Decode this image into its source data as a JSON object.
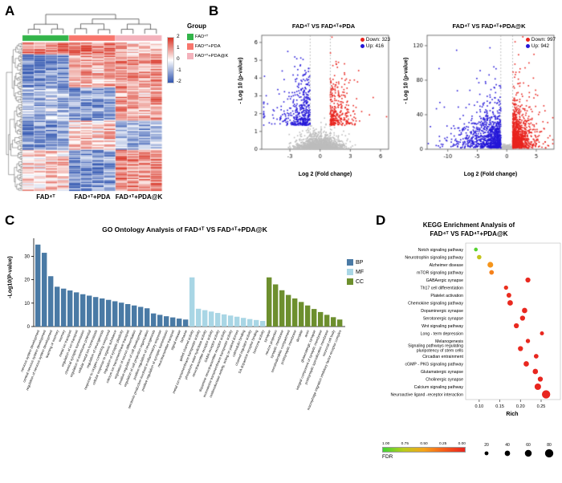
{
  "figure": {
    "panel_a_label": "A",
    "panel_b_label": "B",
    "panel_c_label": "C",
    "panel_d_label": "D"
  },
  "panel_a": {
    "group_legend_title": "Group",
    "legend_items": [
      {
        "label": "FAD⁴ᵀ",
        "color": "#33b44a"
      },
      {
        "label": "FAD⁴ᵀ+PDA",
        "color": "#f8766d"
      },
      {
        "label": "FAD⁴ᵀ+PDA@K",
        "color": "#f4b2bc"
      }
    ],
    "colorbar_ticks": [
      "2",
      "1",
      "0",
      "-1",
      "-2"
    ],
    "x_labels": [
      "FAD⁴ᵀ",
      "FAD⁴ᵀ+PDA",
      "FAD⁴ᵀ+PDA@K"
    ]
  },
  "chart_data": [
    {
      "id": "heatmap",
      "type": "heatmap",
      "seed": 42,
      "n_rows": 112,
      "n_cols": 12,
      "group_sizes": [
        4,
        4,
        4
      ],
      "groups": [
        "FAD⁴ᵀ",
        "FAD⁴ᵀ+PDA",
        "FAD⁴ᵀ+PDA@K"
      ],
      "group_colors": [
        "#33b44a",
        "#f8766d",
        "#f4b2bc"
      ],
      "colors": {
        "high": "#d93425",
        "mid": "#ffffff",
        "low": "#3156b0"
      },
      "scale_ticks": [
        2,
        1,
        0,
        -1,
        -2
      ],
      "top_tree": [
        [
          [
            0,
            1
          ],
          [
            2,
            3
          ]
        ],
        [
          [
            [
              4,
              5
            ],
            [
              6,
              7
            ]
          ],
          [
            [
              8,
              9
            ],
            [
              10,
              11
            ]
          ]
        ]
      ],
      "bands": [
        {
          "f": 0.08,
          "v": [
            1.4,
            1.5,
            0.6
          ]
        },
        {
          "f": 0.3,
          "v": [
            -1.5,
            0.8,
            1.1
          ]
        },
        {
          "f": 0.52,
          "v": [
            -0.9,
            -1.2,
            0.8
          ]
        },
        {
          "f": 0.72,
          "v": [
            -1.4,
            0.6,
            -1.0
          ]
        },
        {
          "f": 1.01,
          "v": [
            0.4,
            -1.3,
            1.2
          ]
        }
      ]
    },
    {
      "id": "volcano_pda",
      "type": "scatter",
      "title": "FAD⁴ᵀ VS FAD⁴ᵀ+PDA",
      "xlabel": "Log 2 (Fold change)",
      "ylabel": "- Log 10 (p-value)",
      "legend": [
        {
          "label": "Down: 323",
          "color": "#e8241e"
        },
        {
          "label": "Up: 416",
          "color": "#2417d8"
        }
      ],
      "xlim": [
        -5.8,
        6.8
      ],
      "ylim": [
        0,
        6.4
      ],
      "xticks": [
        -3,
        0,
        3,
        6
      ],
      "yticks": [
        0,
        1,
        2,
        3,
        4,
        5,
        6
      ],
      "thresh": 1,
      "seed": 7,
      "n_gray": 1700,
      "n_up": 416,
      "n_down": 323,
      "gray_sx": 1.0,
      "gray_ys": 0.55,
      "up_sx": 1.2,
      "down_sx": 0.9,
      "ytail": 1.0,
      "up_color": "#2417d8",
      "down_color": "#e8241e",
      "ns_color": "#bdbdbd"
    },
    {
      "id": "volcano_pdak",
      "type": "scatter",
      "title": "FAD⁴ᵀ VS FAD⁴ᵀ+PDA@K",
      "xlabel": "Log 2 (Fold change)",
      "ylabel": "- Log 10 (p-value)",
      "legend": [
        {
          "label": "Down: 997",
          "color": "#e8241e"
        },
        {
          "label": "Up: 942",
          "color": "#2417d8"
        }
      ],
      "xlim": [
        -13.5,
        8
      ],
      "ylim": [
        0,
        132
      ],
      "xticks": [
        -10,
        -5,
        0,
        5
      ],
      "yticks": [
        0,
        40,
        80,
        120
      ],
      "thresh": 1,
      "seed": 11,
      "n_gray": 1700,
      "n_up": 942,
      "n_down": 997,
      "gray_sx": 0.9,
      "gray_ys": 2.0,
      "up_sx": 2.4,
      "down_sx": 1.2,
      "ytail": 17,
      "up_color": "#2417d8",
      "down_color": "#e8241e",
      "ns_color": "#bdbdbd"
    },
    {
      "id": "go_ontology",
      "type": "bar",
      "title": "GO Ontology Analysis of FAD⁴ᵀ VS FAD⁴ᵀ+PDA@K",
      "ylabel": "-Log10(P-value)",
      "ylim": [
        0,
        37
      ],
      "yticks": [
        0,
        10,
        20,
        30
      ],
      "groups": [
        {
          "name": "BP",
          "color": "#4a7aa5",
          "terms": [
            "nervous system development",
            "central nervous system development",
            "regulation of nervous system development",
            "learning or memory",
            "memory",
            "metal ion transport",
            "regulation of ion transport",
            "chemical synaptic transmission",
            "regulation of membrane potential",
            "cellular metal ion homeostasis",
            "regulation of neurogenesis",
            "response to oxygen-containing compound",
            "cellular response to organic substance",
            "regulation of synaptic plasticity",
            "calcium ion transmembrane transport",
            "regulation of neuron differentiation",
            "positive regulation of cell development",
            "regulation of cell projection organization",
            "positive regulation of neurogenesis",
            "serotonin production involved in inflammatory response",
            "positive regulation of synaptic transmission",
            "neurotransmitter transport",
            "signal release",
            "behavior"
          ],
          "values": [
            35.0,
            31.5,
            21.5,
            17.0,
            16.2,
            15.4,
            14.6,
            13.8,
            13.2,
            12.6,
            12.0,
            11.4,
            10.8,
            10.2,
            9.6,
            9.0,
            8.4,
            7.8,
            5.6,
            5.0,
            4.4,
            3.9,
            3.4,
            3.0
          ]
        },
        {
          "name": "MF",
          "color": "#a9d6e5",
          "terms": [
            "gated channel activity",
            "metal ion transmembrane transporter activity",
            "phosphoric ester hydrolase activity",
            "neurotransmitter receptor activity",
            "GABA receptor activity",
            "dopamine neurotransmitter receptor activity",
            "monoamine transmembrane transporter activity",
            "oxidoreductase activity, acting on paired donors",
            "calmodulin binding",
            "channel regulator activity",
            "DA dopamine receptor binding",
            "hormone activity"
          ],
          "values": [
            21.0,
            7.6,
            7.0,
            6.4,
            5.8,
            5.2,
            4.7,
            4.2,
            3.7,
            3.2,
            2.8,
            2.4
          ]
        },
        {
          "name": "CC",
          "color": "#6d8f2e",
          "terms": [
            "synapse",
            "neuron projection",
            "synaptic membrane",
            "somatodendritic compartment",
            "postsynaptic membrane",
            "dendrite",
            "axon",
            "glutamatergic synapse",
            "integral component of synaptic membrane",
            "postsynaptic specialization membrane",
            "neuronal cell body",
            "macrophage migration inhibitory factor receptor complex"
          ],
          "values": [
            21.0,
            18.0,
            15.5,
            13.5,
            12.0,
            10.5,
            9.0,
            7.5,
            6.2,
            5.0,
            4.0,
            3.0
          ]
        }
      ]
    },
    {
      "id": "kegg",
      "type": "scatter",
      "title_line1": "KEGG Enrichment Analysis of",
      "title_line2": "FAD⁴ᵀ VS FAD⁴ᵀ+PDA@K",
      "xlabel": "Rich",
      "xlim": [
        0.075,
        0.285
      ],
      "xticks": [
        0.1,
        0.15,
        0.2,
        0.25
      ],
      "fdr_legend": {
        "label": "FDR",
        "ticks": [
          "1.00",
          "0.75",
          "0.50",
          "0.25",
          "0.00"
        ]
      },
      "size_legend": {
        "values": [
          20,
          40,
          60,
          80
        ]
      },
      "fdr_stops": [
        {
          "t": 0.0,
          "c": "#e8251f"
        },
        {
          "t": 0.25,
          "c": "#f55c1b"
        },
        {
          "t": 0.5,
          "c": "#f5a31b"
        },
        {
          "t": 0.75,
          "c": "#b8cc1e"
        },
        {
          "t": 1.0,
          "c": "#3fd435"
        }
      ],
      "pathways": [
        {
          "label": "Notch signaling pathway",
          "rich": 0.092,
          "count": 18,
          "fdr": 0.95
        },
        {
          "label": "Neurotrophin signaling pathway",
          "rich": 0.1,
          "count": 28,
          "fdr": 0.7
        },
        {
          "label": "Alzheimer disease",
          "rich": 0.127,
          "count": 45,
          "fdr": 0.45
        },
        {
          "label": "mTOR signaling pathway",
          "rich": 0.13,
          "count": 30,
          "fdr": 0.38
        },
        {
          "label": "GABAergic synapse",
          "rich": 0.218,
          "count": 35,
          "fdr": 0.02
        },
        {
          "label": "Th17 cell differentiation",
          "rich": 0.165,
          "count": 25,
          "fdr": 0.05
        },
        {
          "label": "Platelet activation",
          "rich": 0.172,
          "count": 32,
          "fdr": 0.03
        },
        {
          "label": "Chemokine signaling pathway",
          "rich": 0.175,
          "count": 42,
          "fdr": 0.02
        },
        {
          "label": "Dopaminergic synapse",
          "rich": 0.21,
          "count": 40,
          "fdr": 0.01
        },
        {
          "label": "Serotonergic synapse",
          "rich": 0.205,
          "count": 36,
          "fdr": 0.01
        },
        {
          "label": "Wnt signaling pathway",
          "rich": 0.19,
          "count": 36,
          "fdr": 0.02
        },
        {
          "label": "Long - term depression",
          "rich": 0.252,
          "count": 22,
          "fdr": 0.01
        },
        {
          "label": "Melanogenesis",
          "rich": 0.218,
          "count": 26,
          "fdr": 0.02
        },
        {
          "label": "Signaling pathways regulating\npluripotency of stem cells",
          "rich": 0.2,
          "count": 36,
          "fdr": 0.02
        },
        {
          "label": "Circadian entrainment",
          "rich": 0.238,
          "count": 30,
          "fdr": 0.005
        },
        {
          "label": "cGMP - PKG signaling pathway",
          "rich": 0.214,
          "count": 40,
          "fdr": 0.01
        },
        {
          "label": "Glutamatergic synapse",
          "rich": 0.236,
          "count": 40,
          "fdr": 0.005
        },
        {
          "label": "Cholinergic synapse",
          "rich": 0.248,
          "count": 36,
          "fdr": 0.005
        },
        {
          "label": "Calcium signaling pathway",
          "rich": 0.242,
          "count": 55,
          "fdr": 0.005
        },
        {
          "label": "Neuroactive ligand -receptor interaction",
          "rich": 0.262,
          "count": 80,
          "fdr": 0.002
        }
      ]
    }
  ]
}
